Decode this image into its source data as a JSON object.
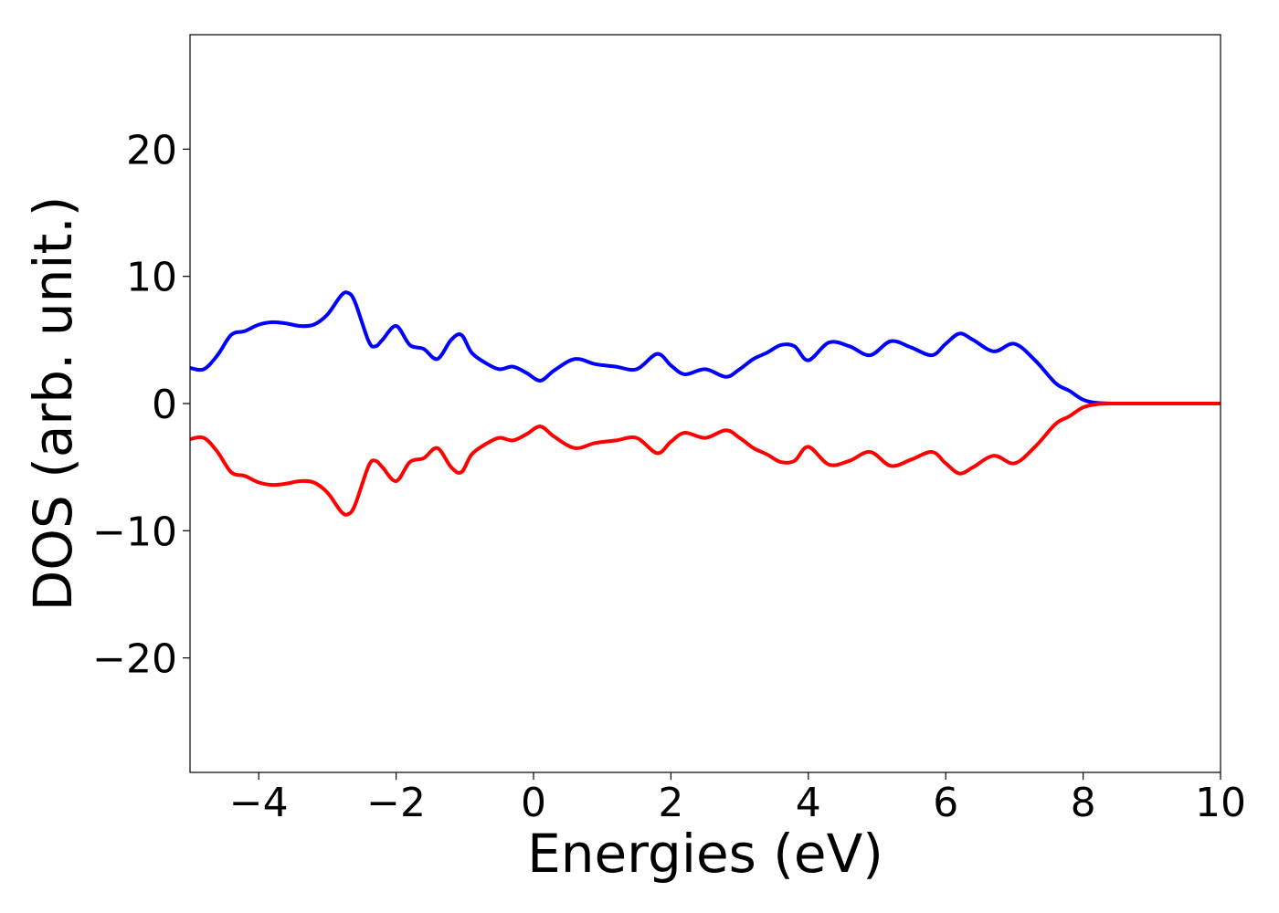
{
  "chart_data": {
    "type": "line",
    "title": "",
    "xlabel": "Energies (eV)",
    "ylabel": "DOS (arb. unit.)",
    "xlim": [
      -5,
      10
    ],
    "ylim": [
      -29,
      29
    ],
    "xticks": [
      -4,
      -2,
      0,
      2,
      4,
      6,
      8,
      10
    ],
    "xtick_labels": [
      "−4",
      "−2",
      "0",
      "2",
      "4",
      "6",
      "8",
      "10"
    ],
    "yticks": [
      20,
      10,
      0,
      -10,
      -20
    ],
    "ytick_labels": [
      "20",
      "10",
      "0",
      "−10",
      "−20"
    ],
    "grid": false,
    "legend": false,
    "series": [
      {
        "color": "#0000ff",
        "x": [
          -5.0,
          -4.8,
          -4.6,
          -4.4,
          -4.2,
          -4.0,
          -3.8,
          -3.6,
          -3.4,
          -3.2,
          -3.0,
          -2.8,
          -2.7,
          -2.6,
          -2.4,
          -2.3,
          -2.2,
          -2.0,
          -1.8,
          -1.6,
          -1.4,
          -1.2,
          -1.05,
          -0.9,
          -0.7,
          -0.5,
          -0.3,
          -0.1,
          0.1,
          0.3,
          0.6,
          0.9,
          1.2,
          1.5,
          1.8,
          2.0,
          2.2,
          2.5,
          2.8,
          3.0,
          3.2,
          3.4,
          3.6,
          3.8,
          4.0,
          4.3,
          4.6,
          4.9,
          5.2,
          5.5,
          5.8,
          6.0,
          6.2,
          6.4,
          6.7,
          7.0,
          7.3,
          7.6,
          7.8,
          8.0,
          8.2,
          8.5,
          9.0,
          10.0
        ],
        "y": [
          2.8,
          2.7,
          3.8,
          5.4,
          5.7,
          6.2,
          6.4,
          6.3,
          6.1,
          6.2,
          7.0,
          8.5,
          8.7,
          8.0,
          4.9,
          4.5,
          5.0,
          6.1,
          4.6,
          4.3,
          3.5,
          5.0,
          5.4,
          4.0,
          3.2,
          2.7,
          2.9,
          2.4,
          1.8,
          2.6,
          3.5,
          3.1,
          2.9,
          2.7,
          3.9,
          3.0,
          2.3,
          2.7,
          2.1,
          2.7,
          3.5,
          4.0,
          4.6,
          4.5,
          3.4,
          4.8,
          4.5,
          3.8,
          4.9,
          4.4,
          3.8,
          4.7,
          5.5,
          5.0,
          4.1,
          4.7,
          3.4,
          1.6,
          1.0,
          0.3,
          0.05,
          0.0,
          0.0,
          0.0
        ]
      },
      {
        "color": "#ff0000",
        "x": [
          -5.0,
          -4.8,
          -4.6,
          -4.4,
          -4.2,
          -4.0,
          -3.8,
          -3.6,
          -3.4,
          -3.2,
          -3.0,
          -2.8,
          -2.7,
          -2.6,
          -2.4,
          -2.3,
          -2.2,
          -2.0,
          -1.8,
          -1.6,
          -1.4,
          -1.2,
          -1.05,
          -0.9,
          -0.7,
          -0.5,
          -0.3,
          -0.1,
          0.1,
          0.3,
          0.6,
          0.9,
          1.2,
          1.5,
          1.8,
          2.0,
          2.2,
          2.5,
          2.8,
          3.0,
          3.2,
          3.4,
          3.6,
          3.8,
          4.0,
          4.3,
          4.6,
          4.9,
          5.2,
          5.5,
          5.8,
          6.0,
          6.2,
          6.4,
          6.7,
          7.0,
          7.3,
          7.6,
          7.8,
          8.0,
          8.2,
          8.5,
          9.0,
          10.0
        ],
        "y": [
          -2.8,
          -2.7,
          -3.8,
          -5.4,
          -5.7,
          -6.2,
          -6.4,
          -6.3,
          -6.1,
          -6.2,
          -7.0,
          -8.5,
          -8.7,
          -8.0,
          -4.9,
          -4.5,
          -5.0,
          -6.1,
          -4.6,
          -4.3,
          -3.5,
          -5.0,
          -5.4,
          -4.0,
          -3.2,
          -2.7,
          -2.9,
          -2.4,
          -1.8,
          -2.6,
          -3.5,
          -3.1,
          -2.9,
          -2.7,
          -3.9,
          -3.0,
          -2.3,
          -2.7,
          -2.1,
          -2.7,
          -3.5,
          -4.0,
          -4.6,
          -4.5,
          -3.4,
          -4.8,
          -4.5,
          -3.8,
          -4.9,
          -4.4,
          -3.8,
          -4.7,
          -5.5,
          -5.0,
          -4.1,
          -4.7,
          -3.4,
          -1.6,
          -1.0,
          -0.3,
          -0.05,
          0.0,
          0.0,
          0.0
        ]
      }
    ]
  }
}
